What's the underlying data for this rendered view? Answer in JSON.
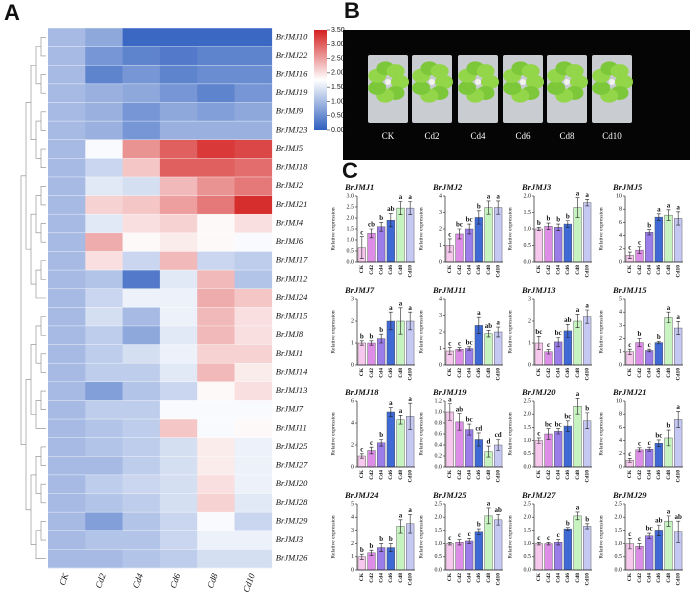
{
  "panel_labels": [
    "A",
    "B",
    "C"
  ],
  "photo": {
    "labels": [
      "CK",
      "Cd2",
      "Cd4",
      "Cd6",
      "Cd8",
      "Cd10"
    ]
  },
  "chart_data": [
    {
      "type": "heatmap",
      "categories": [
        "CK",
        "Cd2",
        "Cd4",
        "Cd6",
        "Cd8",
        "Cd10"
      ],
      "rows": [
        "BrJMJ10",
        "BrJMJ22",
        "BrJMJ16",
        "BrJMJ19",
        "BrJMJ9",
        "BrJMJ23",
        "BrJMJ5",
        "BrJMJ18",
        "BrJMJ2",
        "BrJMJ21",
        "BrJMJ4",
        "BrJMJ6",
        "BrJMJ17",
        "BrJMJ12",
        "BrJMJ24",
        "BrJMJ15",
        "BrJMJ8",
        "BrJMJ1",
        "BrJMJ14",
        "BrJMJ13",
        "BrJMJ7",
        "BrJMJ11",
        "BrJMJ25",
        "BrJMJ27",
        "BrJMJ20",
        "BrJMJ28",
        "BrJMJ29",
        "BrJMJ3",
        "BrJMJ26"
      ],
      "values": [
        [
          1.0,
          0.8,
          0.1,
          0.1,
          0.1,
          0.1
        ],
        [
          1.0,
          0.6,
          0.4,
          0.3,
          0.4,
          0.4
        ],
        [
          1.0,
          0.4,
          0.6,
          0.4,
          0.5,
          0.5
        ],
        [
          1.0,
          0.9,
          0.8,
          0.6,
          0.4,
          0.6
        ],
        [
          1.0,
          0.9,
          0.6,
          0.8,
          0.7,
          0.8
        ],
        [
          1.0,
          0.9,
          0.6,
          0.9,
          0.9,
          0.9
        ],
        [
          1.0,
          1.7,
          2.6,
          3.0,
          3.3,
          3.2
        ],
        [
          1.0,
          1.3,
          2.2,
          3.0,
          3.0,
          2.9
        ],
        [
          1.0,
          1.5,
          1.4,
          2.3,
          2.6,
          2.8
        ],
        [
          1.0,
          2.1,
          2.2,
          2.5,
          2.8,
          3.4
        ],
        [
          1.0,
          1.5,
          2.0,
          2.1,
          1.8,
          2.0
        ],
        [
          1.0,
          2.4,
          1.8,
          1.9,
          1.8,
          1.7
        ],
        [
          1.0,
          2.0,
          1.3,
          2.3,
          1.3,
          1.2
        ],
        [
          1.0,
          1.1,
          0.3,
          1.5,
          2.3,
          1.1
        ],
        [
          1.0,
          1.3,
          1.6,
          1.6,
          2.4,
          2.2
        ],
        [
          1.0,
          1.4,
          1.0,
          1.6,
          2.3,
          2.0
        ],
        [
          1.0,
          1.2,
          0.8,
          1.5,
          2.3,
          2.0
        ],
        [
          1.0,
          1.2,
          1.4,
          1.6,
          2.1,
          2.1
        ],
        [
          1.0,
          1.2,
          1.2,
          1.5,
          2.3,
          1.9
        ],
        [
          1.0,
          0.7,
          1.1,
          1.3,
          1.8,
          2.0
        ],
        [
          1.0,
          1.2,
          1.2,
          1.7,
          1.7,
          1.7
        ],
        [
          1.0,
          1.1,
          1.2,
          2.2,
          1.7,
          1.8
        ],
        [
          1.0,
          1.1,
          1.2,
          1.4,
          1.9,
          1.6
        ],
        [
          1.0,
          1.0,
          1.2,
          1.4,
          1.9,
          1.6
        ],
        [
          1.0,
          1.2,
          1.3,
          1.4,
          2.0,
          1.6
        ],
        [
          1.0,
          1.1,
          1.2,
          1.4,
          2.1,
          1.5
        ],
        [
          1.0,
          0.7,
          1.1,
          1.3,
          1.7,
          1.3
        ],
        [
          1.0,
          1.1,
          1.1,
          1.3,
          1.6,
          1.6
        ],
        [
          1.0,
          1.0,
          1.1,
          1.2,
          1.4,
          1.4
        ]
      ],
      "zlim": [
        0,
        3.5
      ],
      "colors": [
        "#2f5fbf",
        "#ffffff",
        "#d42020"
      ],
      "colorbar_ticks": [
        {
          "value": 0,
          "label": "0.00"
        },
        {
          "value": 0.5,
          "label": "0.50"
        },
        {
          "value": 1,
          "label": "1.00"
        },
        {
          "value": 1.5,
          "label": "1.50"
        },
        {
          "value": 2,
          "label": "2.00"
        },
        {
          "value": 2.5,
          "label": "2.50"
        },
        {
          "value": 3,
          "label": "3.00"
        },
        {
          "value": 3.5,
          "label": "3.50"
        }
      ]
    },
    {
      "type": "bar",
      "title": "BrJMJ1",
      "y_label": "Relative expression",
      "categories": [
        "CK",
        "Cd2",
        "Cd4",
        "Cd6",
        "Cd8",
        "Cd10"
      ],
      "values": [
        0.65,
        1.3,
        1.6,
        1.9,
        2.45,
        2.45
      ],
      "errors": [
        0.5,
        0.2,
        0.2,
        0.3,
        0.3,
        0.3
      ],
      "annotations": [
        "c",
        "cb",
        "b",
        "ab",
        "a",
        "a"
      ],
      "colors": [
        "#f6c8ee",
        "#dc8ee6",
        "#9b7de9",
        "#3f6ad6",
        "#c6f3bf",
        "#c6c8f4"
      ],
      "ylim": [
        0,
        3
      ],
      "yticks": [
        {
          "value": 0,
          "label": "0.0"
        },
        0.5,
        {
          "value": 1,
          "label": "1.0"
        },
        1.5,
        {
          "value": 2,
          "label": "2.0"
        },
        2.5,
        {
          "value": 3,
          "label": "3.0"
        }
      ]
    },
    {
      "type": "bar",
      "title": "BrJMJ2",
      "y_label": "Relative expression",
      "categories": [
        "CK",
        "Cd2",
        "Cd4",
        "Cd6",
        "Cd8",
        "Cd10"
      ],
      "values": [
        1.0,
        1.7,
        2.0,
        2.7,
        3.3,
        3.3
      ],
      "errors": [
        0.4,
        0.3,
        0.3,
        0.4,
        0.4,
        0.4
      ],
      "annotations": [
        "c",
        "bc",
        "bc",
        "b",
        "a",
        "a"
      ],
      "colors": [
        "#f6c8ee",
        "#dc8ee6",
        "#9b7de9",
        "#3f6ad6",
        "#c6f3bf",
        "#c6c8f4"
      ],
      "ylim": [
        0,
        4
      ],
      "yticks": [
        0,
        1,
        2,
        3,
        4
      ]
    },
    {
      "type": "bar",
      "title": "BrJMJ3",
      "y_label": "Relative expression",
      "categories": [
        "CK",
        "Cd2",
        "Cd4",
        "Cd6",
        "Cd8",
        "Cd10"
      ],
      "values": [
        1.0,
        1.08,
        1.05,
        1.15,
        1.65,
        1.8
      ],
      "errors": [
        0.05,
        0.1,
        0.1,
        0.1,
        0.3,
        0.1
      ],
      "annotations": [
        "b",
        "b",
        "b",
        "b",
        "a",
        "a"
      ],
      "colors": [
        "#f6c8ee",
        "#dc8ee6",
        "#9b7de9",
        "#3f6ad6",
        "#c6f3bf",
        "#c6c8f4"
      ],
      "ylim": [
        0,
        2
      ],
      "yticks": [
        {
          "value": 0,
          "label": "0.0"
        },
        0.5,
        {
          "value": 1,
          "label": "1.0"
        },
        1.5,
        {
          "value": 2,
          "label": "2.0"
        }
      ]
    },
    {
      "type": "bar",
      "title": "BrJMJ5",
      "y_label": "Relative expression",
      "categories": [
        "CK",
        "Cd2",
        "Cd4",
        "Cd6",
        "Cd8",
        "Cd10"
      ],
      "values": [
        1.0,
        1.8,
        4.5,
        6.8,
        7.1,
        6.6
      ],
      "errors": [
        0.5,
        0.5,
        0.4,
        0.5,
        0.8,
        1.0
      ],
      "annotations": [
        "c",
        "c",
        "b",
        "a",
        "a",
        "a"
      ],
      "colors": [
        "#f6c8ee",
        "#dc8ee6",
        "#9b7de9",
        "#3f6ad6",
        "#c6f3bf",
        "#c6c8f4"
      ],
      "ylim": [
        0,
        10
      ],
      "yticks": [
        0,
        2,
        4,
        6,
        8,
        10
      ]
    },
    {
      "type": "bar",
      "title": "BrJMJ7",
      "y_label": "Relative expression",
      "categories": [
        "CK",
        "Cd2",
        "Cd4",
        "Cd6",
        "Cd8",
        "Cd10"
      ],
      "values": [
        1.0,
        1.0,
        1.2,
        2.0,
        2.0,
        2.0
      ],
      "errors": [
        0.1,
        0.1,
        0.2,
        0.4,
        0.6,
        0.4
      ],
      "annotations": [
        "b",
        "b",
        "b",
        "a",
        "a",
        "a"
      ],
      "colors": [
        "#f6c8ee",
        "#dc8ee6",
        "#9b7de9",
        "#3f6ad6",
        "#c6f3bf",
        "#c6c8f4"
      ],
      "ylim": [
        0,
        3
      ],
      "yticks": [
        0,
        1,
        2,
        3
      ]
    },
    {
      "type": "bar",
      "title": "BrJMJ11",
      "y_label": "Relative expression",
      "categories": [
        "CK",
        "Cd2",
        "Cd4",
        "Cd6",
        "Cd8",
        "Cd10"
      ],
      "values": [
        0.85,
        0.95,
        1.0,
        2.4,
        1.9,
        2.0
      ],
      "errors": [
        0.2,
        0.1,
        0.1,
        0.5,
        0.2,
        0.3
      ],
      "annotations": [
        "c",
        "c",
        "bc",
        "a",
        "ab",
        "a"
      ],
      "colors": [
        "#f6c8ee",
        "#dc8ee6",
        "#9b7de9",
        "#3f6ad6",
        "#c6f3bf",
        "#c6c8f4"
      ],
      "ylim": [
        0,
        4
      ],
      "yticks": [
        0,
        1,
        2,
        3,
        4
      ]
    },
    {
      "type": "bar",
      "title": "BrJMJ13",
      "y_label": "Relative expression",
      "categories": [
        "CK",
        "Cd2",
        "Cd4",
        "Cd6",
        "Cd8",
        "Cd10"
      ],
      "values": [
        1.0,
        0.6,
        1.05,
        1.55,
        2.0,
        2.2
      ],
      "errors": [
        0.3,
        0.1,
        0.2,
        0.3,
        0.3,
        0.3
      ],
      "annotations": [
        "bc",
        "c",
        "bc",
        "ab",
        "a",
        "a"
      ],
      "colors": [
        "#f6c8ee",
        "#dc8ee6",
        "#9b7de9",
        "#3f6ad6",
        "#c6f3bf",
        "#c6c8f4"
      ],
      "ylim": [
        0,
        3
      ],
      "yticks": [
        0,
        1,
        2,
        3
      ]
    },
    {
      "type": "bar",
      "title": "BrJMJ15",
      "y_label": "Relative expression",
      "categories": [
        "CK",
        "Cd2",
        "Cd4",
        "Cd6",
        "Cd8",
        "Cd10"
      ],
      "values": [
        1.0,
        1.7,
        1.1,
        1.7,
        3.6,
        2.8
      ],
      "errors": [
        0.2,
        0.3,
        0.1,
        0.1,
        0.4,
        0.5
      ],
      "annotations": [
        "c",
        "b",
        "c",
        "b",
        "a",
        "a"
      ],
      "colors": [
        "#f6c8ee",
        "#dc8ee6",
        "#9b7de9",
        "#3f6ad6",
        "#c6f3bf",
        "#c6c8f4"
      ],
      "ylim": [
        0,
        5
      ],
      "yticks": [
        0,
        1,
        2,
        3,
        4,
        5
      ]
    },
    {
      "type": "bar",
      "title": "BrJMJ18",
      "y_label": "Relative expression",
      "categories": [
        "CK",
        "Cd2",
        "Cd4",
        "Cd6",
        "Cd8",
        "Cd10"
      ],
      "values": [
        1.0,
        1.5,
        2.2,
        5.0,
        4.3,
        4.6
      ],
      "errors": [
        0.2,
        0.3,
        0.3,
        0.4,
        0.4,
        1.2
      ],
      "annotations": [
        "c",
        "c",
        "b",
        "a",
        "a",
        "a"
      ],
      "colors": [
        "#f6c8ee",
        "#dc8ee6",
        "#9b7de9",
        "#3f6ad6",
        "#c6f3bf",
        "#c6c8f4"
      ],
      "ylim": [
        0,
        6
      ],
      "yticks": [
        0,
        2,
        4,
        6
      ]
    },
    {
      "type": "bar",
      "title": "BrJMJ19",
      "y_label": "Relative expression",
      "categories": [
        "CK",
        "Cd2",
        "Cd4",
        "Cd6",
        "Cd8",
        "Cd10"
      ],
      "values": [
        1.0,
        0.82,
        0.68,
        0.5,
        0.28,
        0.4
      ],
      "errors": [
        0.15,
        0.15,
        0.1,
        0.12,
        0.1,
        0.1
      ],
      "annotations": [
        "a",
        "ab",
        "bc",
        "cd",
        "d",
        "cd"
      ],
      "colors": [
        "#f6c8ee",
        "#dc8ee6",
        "#9b7de9",
        "#3f6ad6",
        "#c6f3bf",
        "#c6c8f4"
      ],
      "ylim": [
        0,
        1.2
      ],
      "yticks": [
        {
          "value": 0,
          "label": "0.0"
        },
        0.2,
        0.4,
        0.6,
        0.8,
        {
          "value": 1,
          "label": "1.0"
        },
        1.2
      ]
    },
    {
      "type": "bar",
      "title": "BrJMJ20",
      "y_label": "Relative expression",
      "categories": [
        "CK",
        "Cd2",
        "Cd4",
        "Cd6",
        "Cd8",
        "Cd10"
      ],
      "values": [
        1.0,
        1.25,
        1.35,
        1.55,
        2.3,
        1.75
      ],
      "errors": [
        0.1,
        0.2,
        0.1,
        0.2,
        0.3,
        0.3
      ],
      "annotations": [
        "c",
        "bc",
        "bc",
        "bc",
        "a",
        "b"
      ],
      "colors": [
        "#f6c8ee",
        "#dc8ee6",
        "#9b7de9",
        "#3f6ad6",
        "#c6f3bf",
        "#c6c8f4"
      ],
      "ylim": [
        0,
        2.5
      ],
      "yticks": [
        {
          "value": 0,
          "label": "0.0"
        },
        0.5,
        {
          "value": 1,
          "label": "1.0"
        },
        1.5,
        {
          "value": 2,
          "label": "2.0"
        },
        2.5
      ]
    },
    {
      "type": "bar",
      "title": "BrJMJ21",
      "y_label": "Relative expression",
      "categories": [
        "CK",
        "Cd2",
        "Cd4",
        "Cd6",
        "Cd8",
        "Cd10"
      ],
      "values": [
        1.0,
        2.6,
        2.7,
        3.6,
        4.4,
        7.2
      ],
      "errors": [
        0.3,
        0.3,
        0.3,
        0.5,
        1.2,
        1.2
      ],
      "annotations": [
        "c",
        "c",
        "c",
        "bc",
        "b",
        "a"
      ],
      "colors": [
        "#f6c8ee",
        "#dc8ee6",
        "#9b7de9",
        "#3f6ad6",
        "#c6f3bf",
        "#c6c8f4"
      ],
      "ylim": [
        0,
        10
      ],
      "yticks": [
        0,
        2,
        4,
        6,
        8,
        10
      ]
    },
    {
      "type": "bar",
      "title": "BrJMJ24",
      "y_label": "Relative expression",
      "categories": [
        "CK",
        "Cd2",
        "Cd4",
        "Cd6",
        "Cd8",
        "Cd10"
      ],
      "values": [
        1.0,
        1.3,
        1.7,
        1.7,
        3.3,
        3.5
      ],
      "errors": [
        0.2,
        0.2,
        0.3,
        0.3,
        0.5,
        0.7
      ],
      "annotations": [
        "b",
        "b",
        "b",
        "b",
        "a",
        "a"
      ],
      "colors": [
        "#f6c8ee",
        "#dc8ee6",
        "#9b7de9",
        "#3f6ad6",
        "#c6f3bf",
        "#c6c8f4"
      ],
      "ylim": [
        0,
        5
      ],
      "yticks": [
        0,
        1,
        2,
        3,
        4,
        5
      ]
    },
    {
      "type": "bar",
      "title": "BrJMJ25",
      "y_label": "Relative expression",
      "categories": [
        "CK",
        "Cd2",
        "Cd4",
        "Cd6",
        "Cd8",
        "Cd10"
      ],
      "values": [
        1.0,
        1.05,
        1.1,
        1.45,
        2.05,
        1.9
      ],
      "errors": [
        0.05,
        0.1,
        0.1,
        0.1,
        0.3,
        0.2
      ],
      "annotations": [
        "c",
        "c",
        "c",
        "b",
        "a",
        "ab"
      ],
      "colors": [
        "#f6c8ee",
        "#dc8ee6",
        "#9b7de9",
        "#3f6ad6",
        "#c6f3bf",
        "#c6c8f4"
      ],
      "ylim": [
        0,
        2.5
      ],
      "yticks": [
        {
          "value": 0,
          "label": "0.0"
        },
        0.5,
        {
          "value": 1,
          "label": "1.0"
        },
        1.5,
        {
          "value": 2,
          "label": "2.0"
        },
        2.5
      ]
    },
    {
      "type": "bar",
      "title": "BrJMJ27",
      "y_label": "Relative expression",
      "categories": [
        "CK",
        "Cd2",
        "Cd4",
        "Cd6",
        "Cd8",
        "Cd10"
      ],
      "values": [
        1.0,
        1.0,
        1.05,
        1.55,
        2.05,
        1.65
      ],
      "errors": [
        0.05,
        0.05,
        0.1,
        0.05,
        0.15,
        0.1
      ],
      "annotations": [
        "c",
        "c",
        "c",
        "b",
        "a",
        "b"
      ],
      "colors": [
        "#f6c8ee",
        "#dc8ee6",
        "#9b7de9",
        "#3f6ad6",
        "#c6f3bf",
        "#c6c8f4"
      ],
      "ylim": [
        0,
        2.5
      ],
      "yticks": [
        {
          "value": 0,
          "label": "0.0"
        },
        0.5,
        {
          "value": 1,
          "label": "1.0"
        },
        1.5,
        {
          "value": 2,
          "label": "2.0"
        },
        2.5
      ]
    },
    {
      "type": "bar",
      "title": "BrJMJ29",
      "y_label": "Relative expression",
      "categories": [
        "CK",
        "Cd2",
        "Cd4",
        "Cd6",
        "Cd8",
        "Cd10"
      ],
      "values": [
        1.0,
        0.9,
        1.3,
        1.5,
        1.85,
        1.45
      ],
      "errors": [
        0.2,
        0.1,
        0.1,
        0.2,
        0.2,
        0.4
      ],
      "annotations": [
        "c",
        "c",
        "bc",
        "ab",
        "a",
        "ab"
      ],
      "colors": [
        "#f6c8ee",
        "#dc8ee6",
        "#9b7de9",
        "#3f6ad6",
        "#c6f3bf",
        "#c6c8f4"
      ],
      "ylim": [
        0,
        2.5
      ],
      "yticks": [
        {
          "value": 0,
          "label": "0.0"
        },
        0.5,
        {
          "value": 1,
          "label": "1.0"
        },
        1.5,
        {
          "value": 2,
          "label": "2.0"
        },
        2.5
      ]
    }
  ]
}
